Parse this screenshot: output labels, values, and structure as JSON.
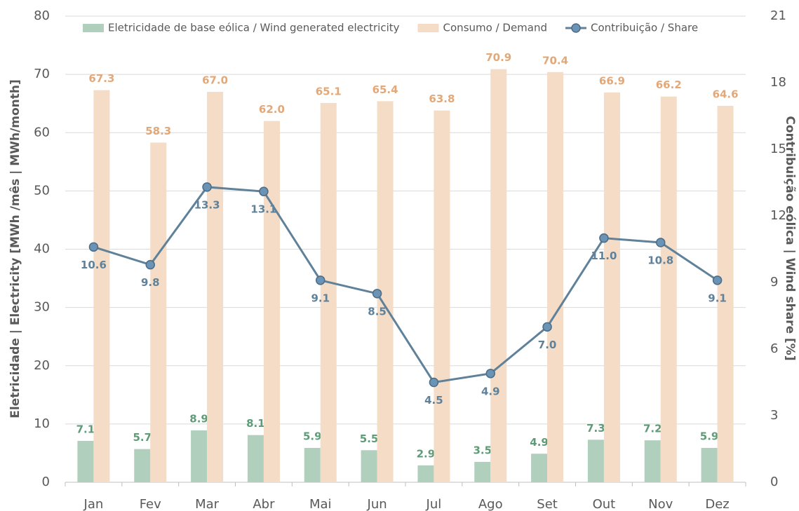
{
  "chart_data": {
    "type": "bar+line",
    "ylabel": "Eletricidade | Electricity [MWh /mês | MWh/month]",
    "y2label": "Contribuição eólica | Wind share [%]",
    "categories": [
      "Jan",
      "Fev",
      "Mar",
      "Abr",
      "Mai",
      "Jun",
      "Jul",
      "Ago",
      "Set",
      "Out",
      "Nov",
      "Dez"
    ],
    "series": [
      {
        "name": "Eletricidade de base eólica / Wind generated electricity",
        "type": "bar",
        "color": "#b1cfbd",
        "label_color": "#5e9b77",
        "values": [
          7.1,
          5.7,
          8.9,
          8.1,
          5.9,
          5.5,
          2.9,
          3.5,
          4.9,
          7.3,
          7.2,
          5.9
        ],
        "value_labels": [
          "7.1",
          "5.7",
          "8.9",
          "8.1",
          "5.9",
          "5.5",
          "2.9",
          "3.5",
          "4.9",
          "7.3",
          "7.2",
          "5.9"
        ]
      },
      {
        "name": "Consumo / Demand",
        "type": "bar",
        "color": "#f4dcc6",
        "label_color": "#e3a878",
        "values": [
          67.3,
          58.3,
          67.0,
          62.0,
          65.1,
          65.4,
          63.8,
          70.9,
          70.4,
          66.9,
          66.2,
          64.6
        ],
        "value_labels": [
          "67.3",
          "58.3",
          "67.0",
          "62.0",
          "65.1",
          "65.4",
          "63.8",
          "70.9",
          "70.4",
          "66.9",
          "66.2",
          "64.6"
        ]
      },
      {
        "name": "Contribuição / Share",
        "type": "line",
        "axis": "y2",
        "color": "#5f8199",
        "label_color": "#5f8199",
        "values": [
          10.6,
          9.8,
          13.3,
          13.1,
          9.1,
          8.5,
          4.5,
          4.9,
          7.0,
          11.0,
          10.8,
          9.1
        ],
        "value_labels": [
          "10.6",
          "9.8",
          "13.3",
          "13.1",
          "9.1",
          "8.5",
          "4.5",
          "4.9",
          "7.0",
          "11.0",
          "10.8",
          "9.1"
        ]
      }
    ],
    "ylim": [
      0,
      80
    ],
    "yticks": [
      0,
      10,
      20,
      30,
      40,
      50,
      60,
      70,
      80
    ],
    "y2lim": [
      0,
      21
    ],
    "y2ticks": [
      0,
      3,
      6,
      9,
      12,
      15,
      18,
      21
    ],
    "grid": true,
    "legend": "top"
  }
}
